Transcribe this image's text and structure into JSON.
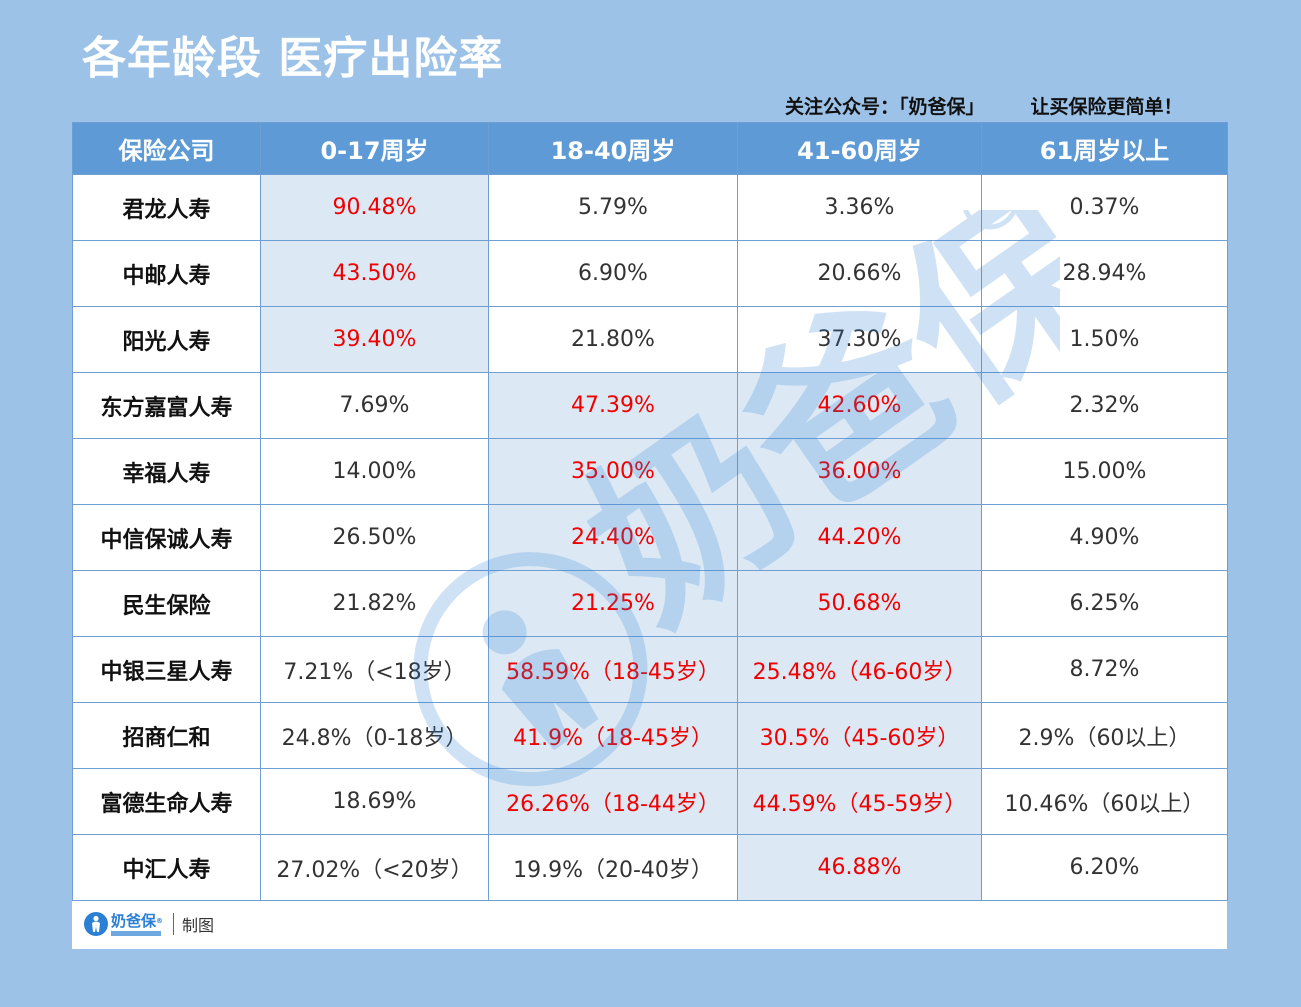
{
  "title": "各年龄段 医疗出险率",
  "slogan": {
    "left": "关注公众号：「奶爸保」",
    "right": "让买保险更简单！"
  },
  "colors": {
    "background": "#9dc2e8",
    "header": "#5d9ad6",
    "highlight_cell": "#dce9f5",
    "highlight_text": "#f00000",
    "normal_text": "#333333"
  },
  "chart_data": {
    "type": "table",
    "headers": [
      "保险公司",
      "0-17周岁",
      "18-40周岁",
      "41-60周岁",
      "61周岁以上"
    ],
    "rows": [
      {
        "company": "君龙人寿",
        "cells": [
          "90.48%",
          "5.79%",
          "3.36%",
          "0.37%"
        ],
        "highlight": [
          true,
          false,
          false,
          false
        ]
      },
      {
        "company": "中邮人寿",
        "cells": [
          "43.50%",
          "6.90%",
          "20.66%",
          "28.94%"
        ],
        "highlight": [
          true,
          false,
          false,
          false
        ]
      },
      {
        "company": "阳光人寿",
        "cells": [
          "39.40%",
          "21.80%",
          "37.30%",
          "1.50%"
        ],
        "highlight": [
          true,
          false,
          false,
          false
        ]
      },
      {
        "company": "东方嘉富人寿",
        "cells": [
          "7.69%",
          "47.39%",
          "42.60%",
          "2.32%"
        ],
        "highlight": [
          false,
          true,
          true,
          false
        ]
      },
      {
        "company": "幸福人寿",
        "cells": [
          "14.00%",
          "35.00%",
          "36.00%",
          "15.00%"
        ],
        "highlight": [
          false,
          true,
          true,
          false
        ]
      },
      {
        "company": "中信保诚人寿",
        "cells": [
          "26.50%",
          "24.40%",
          "44.20%",
          "4.90%"
        ],
        "highlight": [
          false,
          true,
          true,
          false
        ]
      },
      {
        "company": "民生保险",
        "cells": [
          "21.82%",
          "21.25%",
          "50.68%",
          "6.25%"
        ],
        "highlight": [
          false,
          true,
          true,
          false
        ]
      },
      {
        "company": "中银三星人寿",
        "cells": [
          "7.21%（<18岁）",
          "58.59%（18-45岁）",
          "25.48%（46-60岁）",
          "8.72%"
        ],
        "highlight": [
          false,
          true,
          true,
          false
        ]
      },
      {
        "company": "招商仁和",
        "cells": [
          "24.8%（0-18岁）",
          "41.9%（18-45岁）",
          "30.5%（45-60岁）",
          "2.9%（60以上）"
        ],
        "highlight": [
          false,
          true,
          true,
          false
        ]
      },
      {
        "company": "富德生命人寿",
        "cells": [
          "18.69%",
          "26.26%（18-44岁）",
          "44.59%（45-59岁）",
          "10.46%（60以上）"
        ],
        "highlight": [
          false,
          true,
          true,
          false
        ]
      },
      {
        "company": "中汇人寿",
        "cells": [
          "27.02%（<20岁）",
          "19.9%（20-40岁）",
          "46.88%",
          "6.20%"
        ],
        "highlight": [
          false,
          false,
          true,
          false
        ]
      }
    ]
  },
  "footer": {
    "logo_text": "奶爸保",
    "credit": "制图",
    "logo_icon": "baby-carrier-logo-icon"
  },
  "watermark": {
    "text": "奶爸保",
    "icon": "registered-icon"
  }
}
